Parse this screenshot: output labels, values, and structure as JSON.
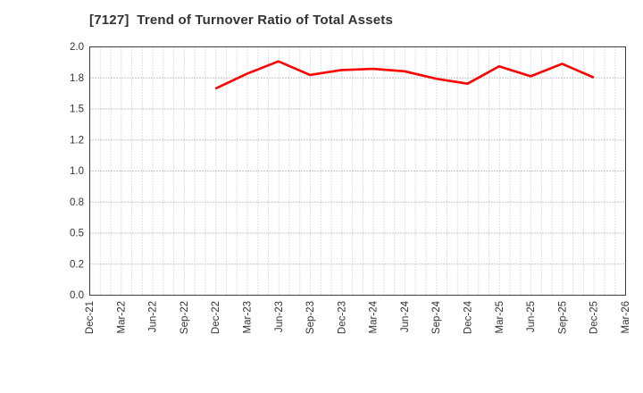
{
  "title": {
    "text": "[7127]  Trend of Turnover Ratio of Total Assets"
  },
  "chart_data": {
    "type": "line",
    "title": "[7127]  Trend of Turnover Ratio of Total Assets",
    "xlabel": "",
    "ylabel": "",
    "ylim": [
      0.0,
      2.0
    ],
    "grid": true,
    "legend": "none",
    "x_axis": {
      "start_month": "Dec-21",
      "end_month": "Mar-26",
      "minor_gridline_every_months": 1,
      "tick_every_months": 3
    },
    "x_tick_labels": [
      "Dec-21",
      "Mar-22",
      "Jun-22",
      "Sep-22",
      "Dec-22",
      "Mar-23",
      "Jun-23",
      "Sep-23",
      "Dec-23",
      "Mar-24",
      "Jun-24",
      "Sep-24",
      "Dec-24",
      "Mar-25",
      "Jun-25",
      "Sep-25",
      "Dec-25",
      "Mar-26"
    ],
    "y_ticks": [
      {
        "value": 0.0,
        "label": "0.0"
      },
      {
        "value": 0.25,
        "label": "0.2"
      },
      {
        "value": 0.5,
        "label": "0.5"
      },
      {
        "value": 0.75,
        "label": "0.8"
      },
      {
        "value": 1.0,
        "label": "1.0"
      },
      {
        "value": 1.25,
        "label": "1.2"
      },
      {
        "value": 1.5,
        "label": "1.5"
      },
      {
        "value": 1.75,
        "label": "1.8"
      },
      {
        "value": 2.0,
        "label": "2.0"
      }
    ],
    "series": [
      {
        "name": "Turnover Ratio of Total Assets",
        "color": "#ff0000",
        "points": [
          {
            "x": "Dec-22",
            "y": 1.66
          },
          {
            "x": "Mar-23",
            "y": 1.78
          },
          {
            "x": "Jun-23",
            "y": 1.88
          },
          {
            "x": "Sep-23",
            "y": 1.77
          },
          {
            "x": "Dec-23",
            "y": 1.81
          },
          {
            "x": "Mar-24",
            "y": 1.82
          },
          {
            "x": "Jun-24",
            "y": 1.8
          },
          {
            "x": "Sep-24",
            "y": 1.74
          },
          {
            "x": "Dec-24",
            "y": 1.7
          },
          {
            "x": "Mar-25",
            "y": 1.84
          },
          {
            "x": "Jun-25",
            "y": 1.76
          },
          {
            "x": "Sep-25",
            "y": 1.86
          },
          {
            "x": "Dec-25",
            "y": 1.75
          }
        ]
      }
    ]
  },
  "style": {
    "background": "#ffffff",
    "title_color": "#333333",
    "tick_label_color": "#333333",
    "axis_border_color": "#3c3c3c",
    "h_gridline_color": "#8f8f8f",
    "v_gridline_color": "#c2c2c2",
    "line_color": "#ff0000"
  }
}
